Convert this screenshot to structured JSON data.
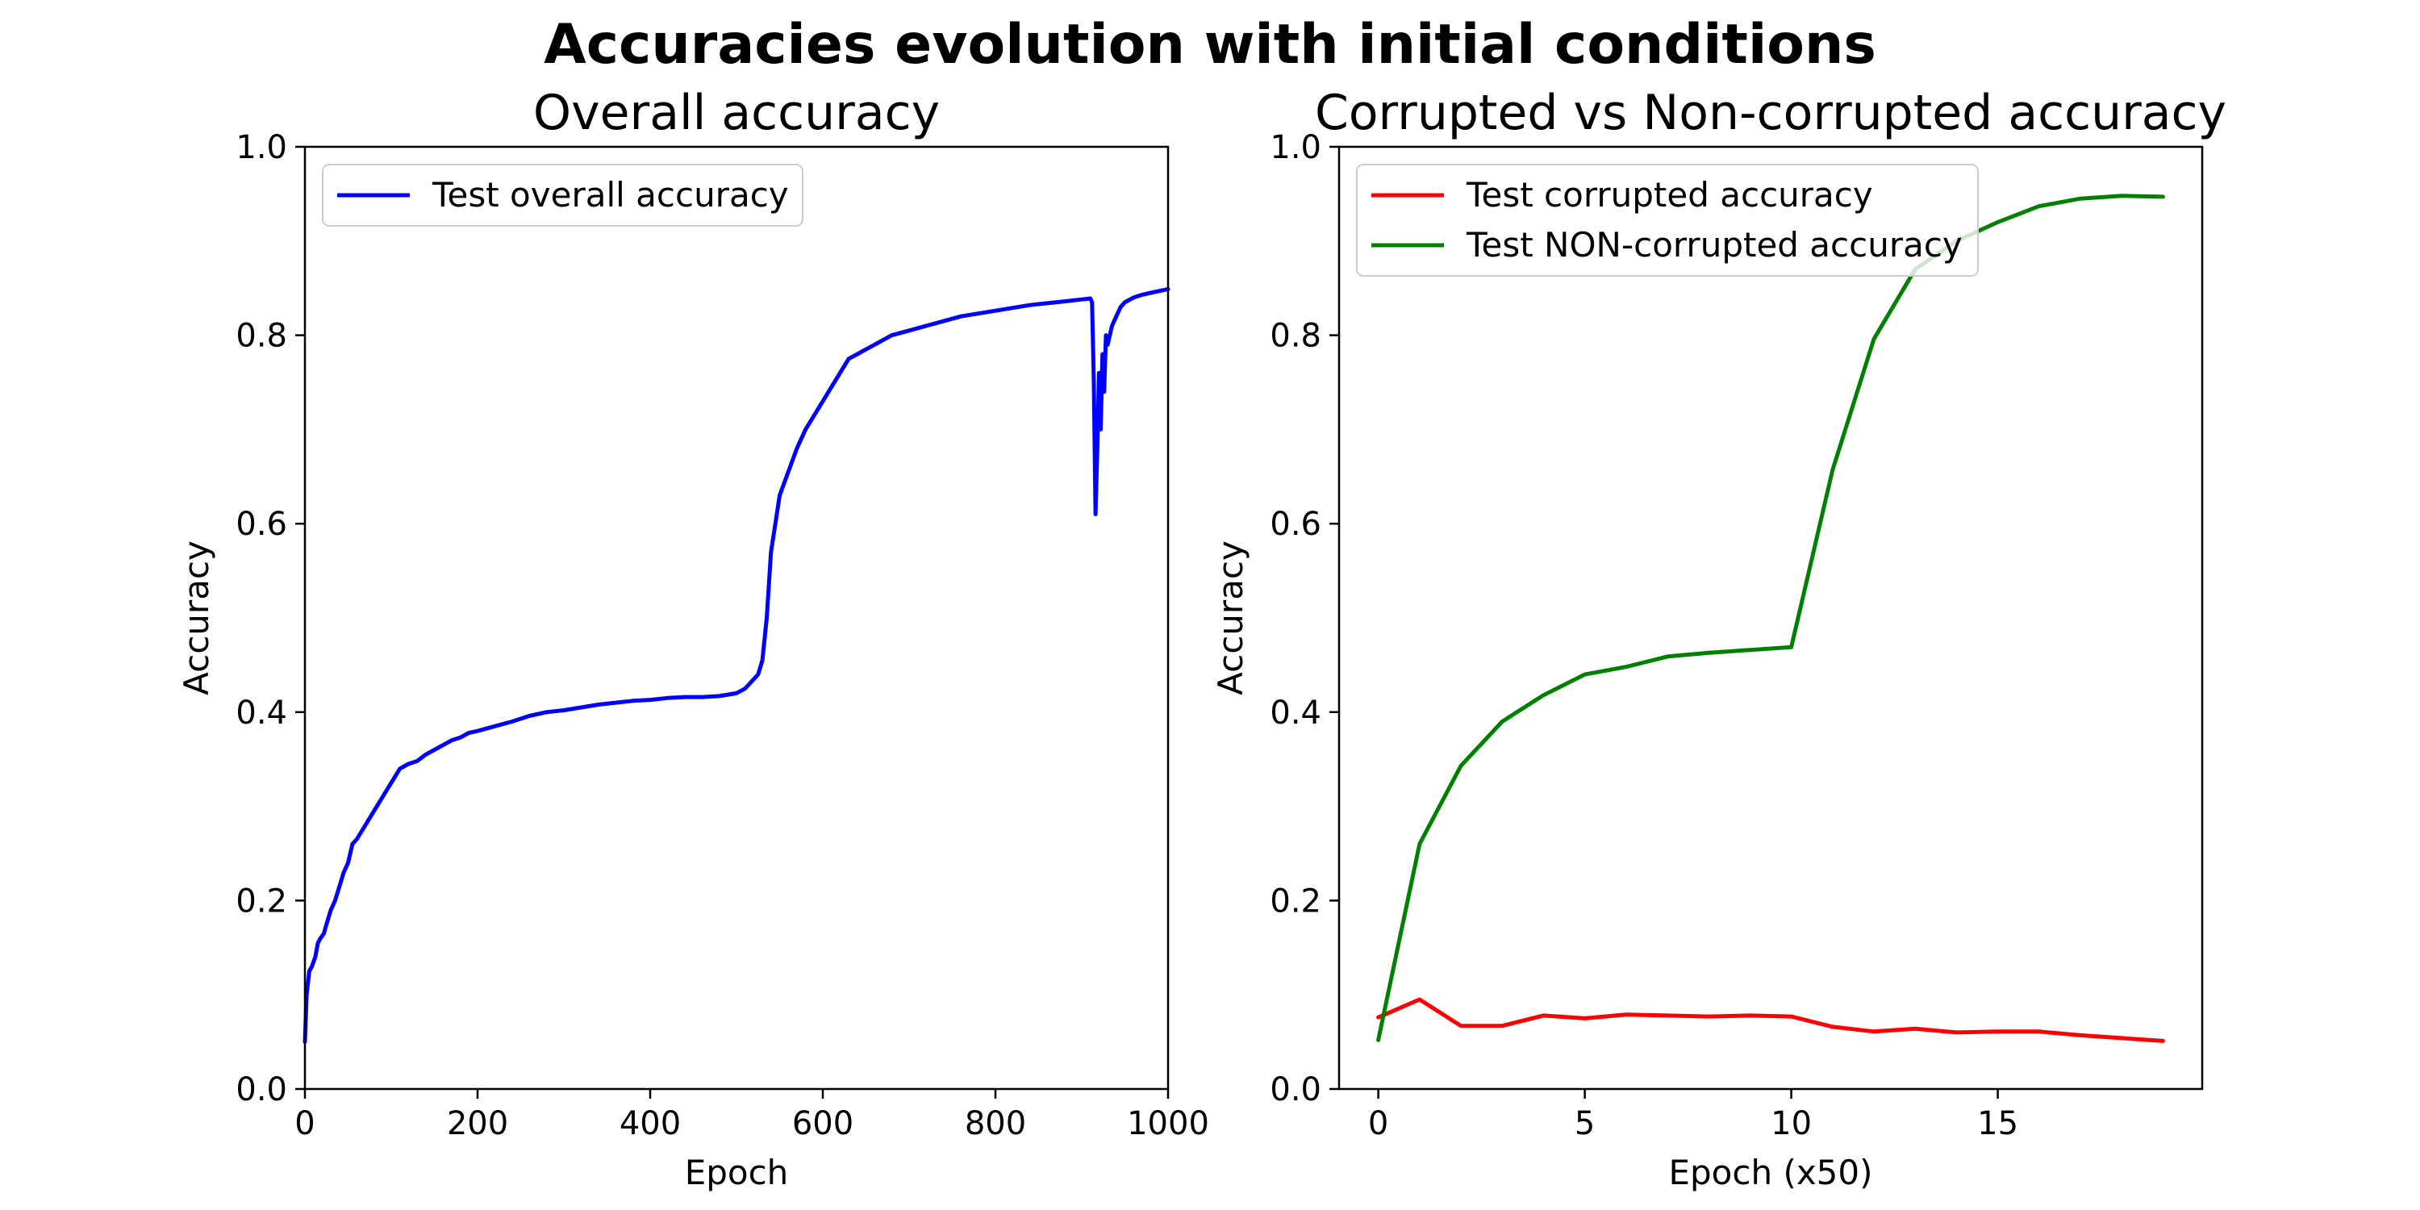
{
  "figure": {
    "title": "Accuracies evolution with initial conditions"
  },
  "chart_data": [
    {
      "type": "line",
      "title": "Overall accuracy",
      "xlabel": "Epoch",
      "ylabel": "Accuracy",
      "xlim": [
        0,
        1000
      ],
      "ylim": [
        0.0,
        1.0
      ],
      "xticks": [
        0,
        200,
        400,
        600,
        800,
        1000
      ],
      "xtick_labels": [
        "0",
        "200",
        "400",
        "600",
        "800",
        "1000"
      ],
      "yticks": [
        0.0,
        0.2,
        0.4,
        0.6,
        0.8,
        1.0
      ],
      "ytick_labels": [
        "0.0",
        "0.2",
        "0.4",
        "0.6",
        "0.8",
        "1.0"
      ],
      "grid": false,
      "legend": "upper-left",
      "series": [
        {
          "name": "Test overall accuracy",
          "color": "#0000ff",
          "x": [
            0,
            2,
            5,
            8,
            12,
            15,
            18,
            22,
            25,
            30,
            35,
            40,
            45,
            50,
            55,
            60,
            70,
            80,
            90,
            100,
            110,
            120,
            130,
            140,
            150,
            160,
            170,
            180,
            190,
            200,
            220,
            240,
            260,
            280,
            300,
            320,
            340,
            360,
            380,
            400,
            420,
            440,
            460,
            480,
            500,
            510,
            520,
            525,
            530,
            535,
            540,
            545,
            550,
            560,
            570,
            580,
            590,
            600,
            610,
            620,
            630,
            640,
            650,
            660,
            680,
            700,
            720,
            740,
            760,
            780,
            800,
            820,
            840,
            860,
            880,
            900,
            910,
            912,
            914,
            916,
            918,
            920,
            922,
            924,
            926,
            928,
            930,
            935,
            940,
            945,
            950,
            960,
            970,
            980,
            990,
            1000
          ],
          "y": [
            0.05,
            0.1,
            0.125,
            0.13,
            0.14,
            0.155,
            0.16,
            0.165,
            0.175,
            0.19,
            0.2,
            0.215,
            0.23,
            0.24,
            0.26,
            0.265,
            0.28,
            0.295,
            0.31,
            0.325,
            0.34,
            0.345,
            0.348,
            0.355,
            0.36,
            0.365,
            0.37,
            0.373,
            0.378,
            0.38,
            0.385,
            0.39,
            0.396,
            0.4,
            0.402,
            0.405,
            0.408,
            0.41,
            0.412,
            0.413,
            0.415,
            0.416,
            0.416,
            0.417,
            0.42,
            0.425,
            0.435,
            0.44,
            0.455,
            0.5,
            0.57,
            0.6,
            0.63,
            0.655,
            0.68,
            0.7,
            0.715,
            0.73,
            0.745,
            0.76,
            0.775,
            0.78,
            0.785,
            0.79,
            0.8,
            0.805,
            0.81,
            0.815,
            0.82,
            0.823,
            0.826,
            0.829,
            0.832,
            0.834,
            0.836,
            0.838,
            0.839,
            0.835,
            0.75,
            0.61,
            0.68,
            0.76,
            0.7,
            0.78,
            0.74,
            0.8,
            0.79,
            0.81,
            0.82,
            0.83,
            0.835,
            0.84,
            0.843,
            0.845,
            0.847,
            0.849
          ]
        }
      ]
    },
    {
      "type": "line",
      "title": "Corrupted vs Non-corrupted accuracy",
      "xlabel": "Epoch (x50)",
      "ylabel": "Accuracy",
      "xlim": [
        -0.95,
        19.95
      ],
      "ylim": [
        0.0,
        1.0
      ],
      "xticks": [
        0,
        5,
        10,
        15
      ],
      "xtick_labels": [
        "0",
        "5",
        "10",
        "15"
      ],
      "yticks": [
        0.0,
        0.2,
        0.4,
        0.6,
        0.8,
        1.0
      ],
      "ytick_labels": [
        "0.0",
        "0.2",
        "0.4",
        "0.6",
        "0.8",
        "1.0"
      ],
      "grid": false,
      "legend": "upper-left",
      "series": [
        {
          "name": "Test corrupted accuracy",
          "color": "#ff0000",
          "x": [
            0,
            1,
            2,
            3,
            4,
            5,
            6,
            7,
            8,
            9,
            10,
            11,
            12,
            13,
            14,
            15,
            16,
            17,
            18,
            19
          ],
          "y": [
            0.076,
            0.095,
            0.067,
            0.067,
            0.078,
            0.075,
            0.079,
            0.078,
            0.077,
            0.078,
            0.077,
            0.066,
            0.061,
            0.064,
            0.06,
            0.061,
            0.061,
            0.057,
            0.054,
            0.051
          ]
        },
        {
          "name": "Test NON-corrupted accuracy",
          "color": "#008000",
          "x": [
            0,
            1,
            2,
            3,
            4,
            5,
            6,
            7,
            8,
            9,
            10,
            11,
            12,
            13,
            14,
            15,
            16,
            17,
            18,
            19
          ],
          "y": [
            0.052,
            0.26,
            0.343,
            0.39,
            0.418,
            0.44,
            0.448,
            0.459,
            0.463,
            0.466,
            0.469,
            0.657,
            0.796,
            0.87,
            0.9,
            0.92,
            0.937,
            0.945,
            0.948,
            0.947
          ]
        }
      ]
    }
  ]
}
